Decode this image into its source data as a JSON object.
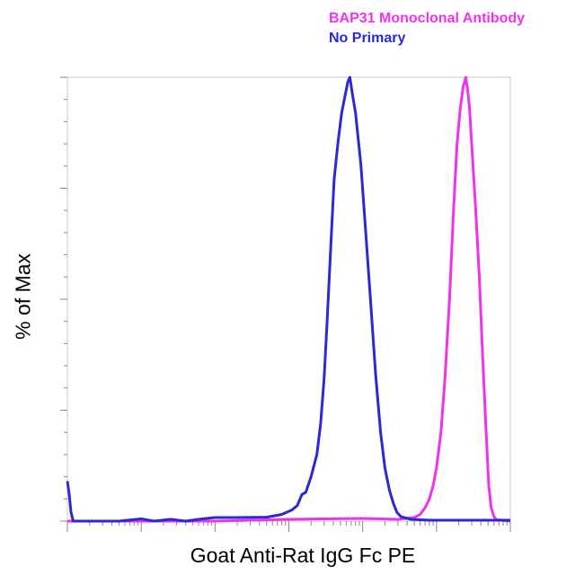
{
  "chart_data": {
    "type": "line",
    "title": "",
    "xlabel": "Goat Anti-Rat IgG Fc PE",
    "ylabel": "% of Max",
    "x_scale": "log",
    "xlim": [
      1,
      1000000
    ],
    "ylim": [
      0,
      100
    ],
    "grid": false,
    "legend_position": "top-right",
    "series": [
      {
        "name": "BAP31 Monoclonal Antibody",
        "color": "#ee33ee",
        "points": [
          [
            1,
            0
          ],
          [
            100,
            0
          ],
          [
            1000,
            0.4
          ],
          [
            10000,
            0.6
          ],
          [
            30000,
            0.4
          ],
          [
            50000,
            0.8
          ],
          [
            60000,
            1.5
          ],
          [
            70000,
            3
          ],
          [
            80000,
            5
          ],
          [
            90000,
            8
          ],
          [
            100000,
            12
          ],
          [
            115000,
            20
          ],
          [
            130000,
            32
          ],
          [
            150000,
            50
          ],
          [
            170000,
            70
          ],
          [
            190000,
            85
          ],
          [
            210000,
            93
          ],
          [
            230000,
            98
          ],
          [
            250000,
            100
          ],
          [
            265000,
            97
          ],
          [
            280000,
            93
          ],
          [
            300000,
            85
          ],
          [
            340000,
            70
          ],
          [
            380000,
            55
          ],
          [
            420000,
            38
          ],
          [
            470000,
            20
          ],
          [
            510000,
            8
          ],
          [
            550000,
            3
          ],
          [
            600000,
            1
          ],
          [
            650000,
            0.3
          ],
          [
            1000000,
            0
          ]
        ]
      },
      {
        "name": "No Primary",
        "color": "#2a2ad4",
        "points": [
          [
            1,
            9
          ],
          [
            1.06,
            6
          ],
          [
            1.12,
            2
          ],
          [
            1.2,
            0
          ],
          [
            5,
            0
          ],
          [
            10,
            0.5
          ],
          [
            15,
            0
          ],
          [
            25,
            0.4
          ],
          [
            40,
            0
          ],
          [
            60,
            0.4
          ],
          [
            100,
            0.8
          ],
          [
            200,
            0.8
          ],
          [
            500,
            0.9
          ],
          [
            800,
            1.5
          ],
          [
            1100,
            2.5
          ],
          [
            1300,
            3.5
          ],
          [
            1500,
            6
          ],
          [
            1700,
            6.5
          ],
          [
            2000,
            10
          ],
          [
            2400,
            15
          ],
          [
            2700,
            22
          ],
          [
            3000,
            32
          ],
          [
            3300,
            45
          ],
          [
            3700,
            62
          ],
          [
            4100,
            77
          ],
          [
            4600,
            85
          ],
          [
            5200,
            92
          ],
          [
            5800,
            96
          ],
          [
            6300,
            99
          ],
          [
            6700,
            100
          ],
          [
            7300,
            96
          ],
          [
            8000,
            92
          ],
          [
            9500,
            80
          ],
          [
            11000,
            65
          ],
          [
            13000,
            48
          ],
          [
            15000,
            33
          ],
          [
            17500,
            20
          ],
          [
            20000,
            12
          ],
          [
            23000,
            7
          ],
          [
            26000,
            4
          ],
          [
            29000,
            2
          ],
          [
            33000,
            1
          ],
          [
            45000,
            0.4
          ],
          [
            80000,
            0.2
          ],
          [
            1000000,
            0.2
          ]
        ]
      }
    ]
  },
  "legend": {
    "entries": [
      {
        "label": "BAP31 Monoclonal Antibody",
        "color": "#ee33ee"
      },
      {
        "label": "No Primary",
        "color": "#2a2ad4"
      }
    ]
  },
  "axes": {
    "xlabel": "Goat Anti-Rat IgG Fc PE",
    "ylabel": "% of Max"
  }
}
